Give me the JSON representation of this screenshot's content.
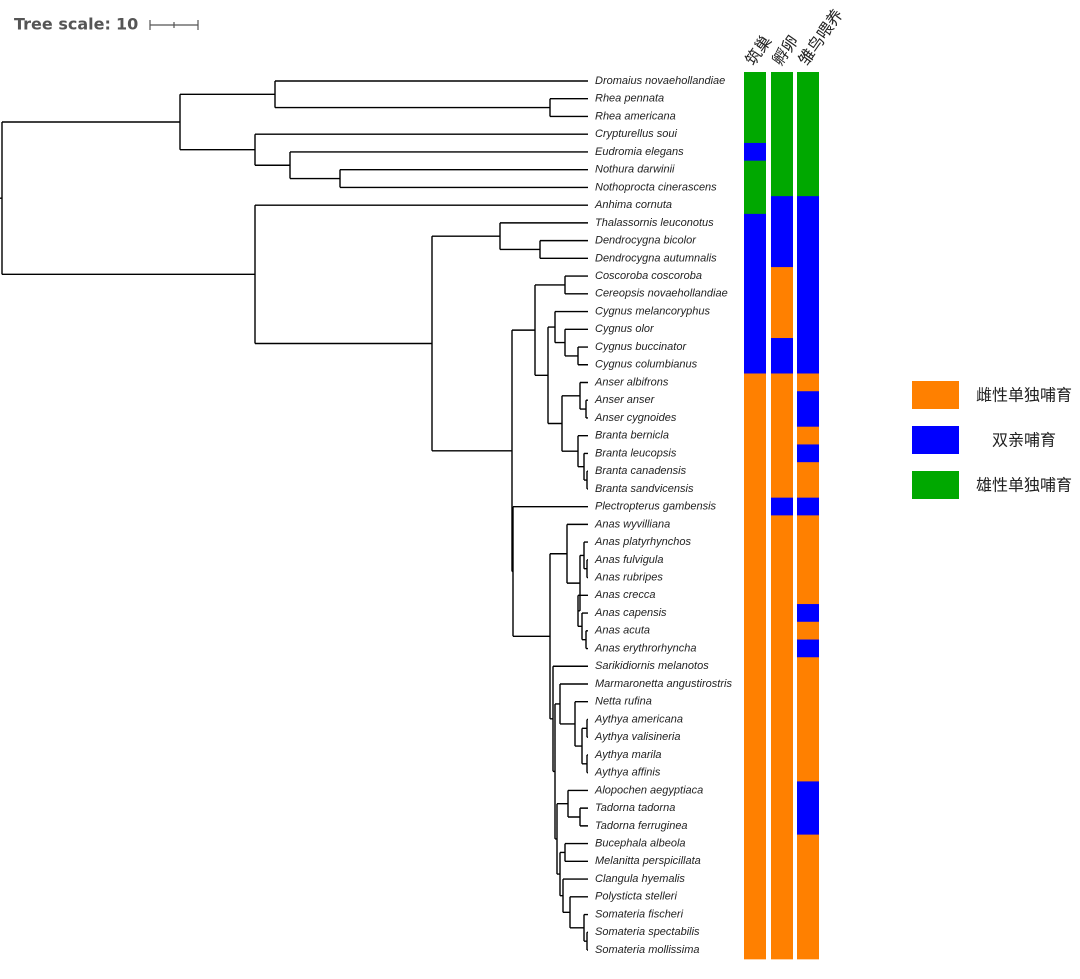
{
  "tree_scale": {
    "label": "Tree scale:",
    "value": 10
  },
  "columns": [
    "筑巢",
    "孵卵",
    "雏鸟喂养"
  ],
  "legend": [
    {
      "label": "雌性单独哺育",
      "color": "#ff8000"
    },
    {
      "label": "双亲哺育",
      "color": "#0000ff"
    },
    {
      "label": "雄性单独哺育",
      "color": "#00a800"
    }
  ],
  "species": [
    {
      "name": "Dromaius novaehollandiae",
      "traits": [
        2,
        2,
        2
      ]
    },
    {
      "name": "Rhea pennata",
      "traits": [
        2,
        2,
        2
      ]
    },
    {
      "name": "Rhea americana",
      "traits": [
        2,
        2,
        2
      ]
    },
    {
      "name": "Crypturellus soui",
      "traits": [
        2,
        2,
        2
      ]
    },
    {
      "name": "Eudromia elegans",
      "traits": [
        1,
        2,
        2
      ]
    },
    {
      "name": "Nothura darwinii",
      "traits": [
        2,
        2,
        2
      ]
    },
    {
      "name": "Nothoprocta cinerascens",
      "traits": [
        2,
        2,
        2
      ]
    },
    {
      "name": "Anhima cornuta",
      "traits": [
        2,
        1,
        1
      ]
    },
    {
      "name": "Thalassornis leuconotus",
      "traits": [
        1,
        1,
        1
      ]
    },
    {
      "name": "Dendrocygna bicolor",
      "traits": [
        1,
        1,
        1
      ]
    },
    {
      "name": "Dendrocygna autumnalis",
      "traits": [
        1,
        1,
        1
      ]
    },
    {
      "name": "Coscoroba coscoroba",
      "traits": [
        1,
        0,
        1
      ]
    },
    {
      "name": "Cereopsis novaehollandiae",
      "traits": [
        1,
        0,
        1
      ]
    },
    {
      "name": "Cygnus melancoryphus",
      "traits": [
        1,
        0,
        1
      ]
    },
    {
      "name": "Cygnus olor",
      "traits": [
        1,
        0,
        1
      ]
    },
    {
      "name": "Cygnus buccinator",
      "traits": [
        1,
        1,
        1
      ]
    },
    {
      "name": "Cygnus columbianus",
      "traits": [
        1,
        1,
        1
      ]
    },
    {
      "name": "Anser albifrons",
      "traits": [
        0,
        0,
        0
      ]
    },
    {
      "name": "Anser anser",
      "traits": [
        0,
        0,
        1
      ]
    },
    {
      "name": "Anser cygnoides",
      "traits": [
        0,
        0,
        1
      ]
    },
    {
      "name": "Branta bernicla",
      "traits": [
        0,
        0,
        0
      ]
    },
    {
      "name": "Branta leucopsis",
      "traits": [
        0,
        0,
        1
      ]
    },
    {
      "name": "Branta canadensis",
      "traits": [
        0,
        0,
        0
      ]
    },
    {
      "name": "Branta sandvicensis",
      "traits": [
        0,
        0,
        0
      ]
    },
    {
      "name": "Plectropterus gambensis",
      "traits": [
        0,
        1,
        1
      ]
    },
    {
      "name": "Anas wyvilliana",
      "traits": [
        0,
        0,
        0
      ]
    },
    {
      "name": "Anas platyrhynchos",
      "traits": [
        0,
        0,
        0
      ]
    },
    {
      "name": "Anas fulvigula",
      "traits": [
        0,
        0,
        0
      ]
    },
    {
      "name": "Anas rubripes",
      "traits": [
        0,
        0,
        0
      ]
    },
    {
      "name": "Anas crecca",
      "traits": [
        0,
        0,
        0
      ]
    },
    {
      "name": "Anas capensis",
      "traits": [
        0,
        0,
        1
      ]
    },
    {
      "name": "Anas acuta",
      "traits": [
        0,
        0,
        0
      ]
    },
    {
      "name": "Anas erythrorhyncha",
      "traits": [
        0,
        0,
        1
      ]
    },
    {
      "name": "Sarikidiornis melanotos",
      "traits": [
        0,
        0,
        0
      ]
    },
    {
      "name": "Marmaronetta angustirostris",
      "traits": [
        0,
        0,
        0
      ]
    },
    {
      "name": "Netta rufina",
      "traits": [
        0,
        0,
        0
      ]
    },
    {
      "name": "Aythya americana",
      "traits": [
        0,
        0,
        0
      ]
    },
    {
      "name": "Aythya valisineria",
      "traits": [
        0,
        0,
        0
      ]
    },
    {
      "name": "Aythya marila",
      "traits": [
        0,
        0,
        0
      ]
    },
    {
      "name": "Aythya affinis",
      "traits": [
        0,
        0,
        0
      ]
    },
    {
      "name": "Alopochen aegyptiaca",
      "traits": [
        0,
        0,
        1
      ]
    },
    {
      "name": "Tadorna tadorna",
      "traits": [
        0,
        0,
        1
      ]
    },
    {
      "name": "Tadorna ferruginea",
      "traits": [
        0,
        0,
        1
      ]
    },
    {
      "name": "Bucephala albeola",
      "traits": [
        0,
        0,
        0
      ]
    },
    {
      "name": "Melanitta perspicillata",
      "traits": [
        0,
        0,
        0
      ]
    },
    {
      "name": "Clangula hyemalis",
      "traits": [
        0,
        0,
        0
      ]
    },
    {
      "name": "Polysticta stelleri",
      "traits": [
        0,
        0,
        0
      ]
    },
    {
      "name": "Somateria fischeri",
      "traits": [
        0,
        0,
        0
      ]
    },
    {
      "name": "Somateria spectabilis",
      "traits": [
        0,
        0,
        0
      ]
    },
    {
      "name": "Somateria mollissima",
      "traits": [
        0,
        0,
        0
      ]
    }
  ]
}
